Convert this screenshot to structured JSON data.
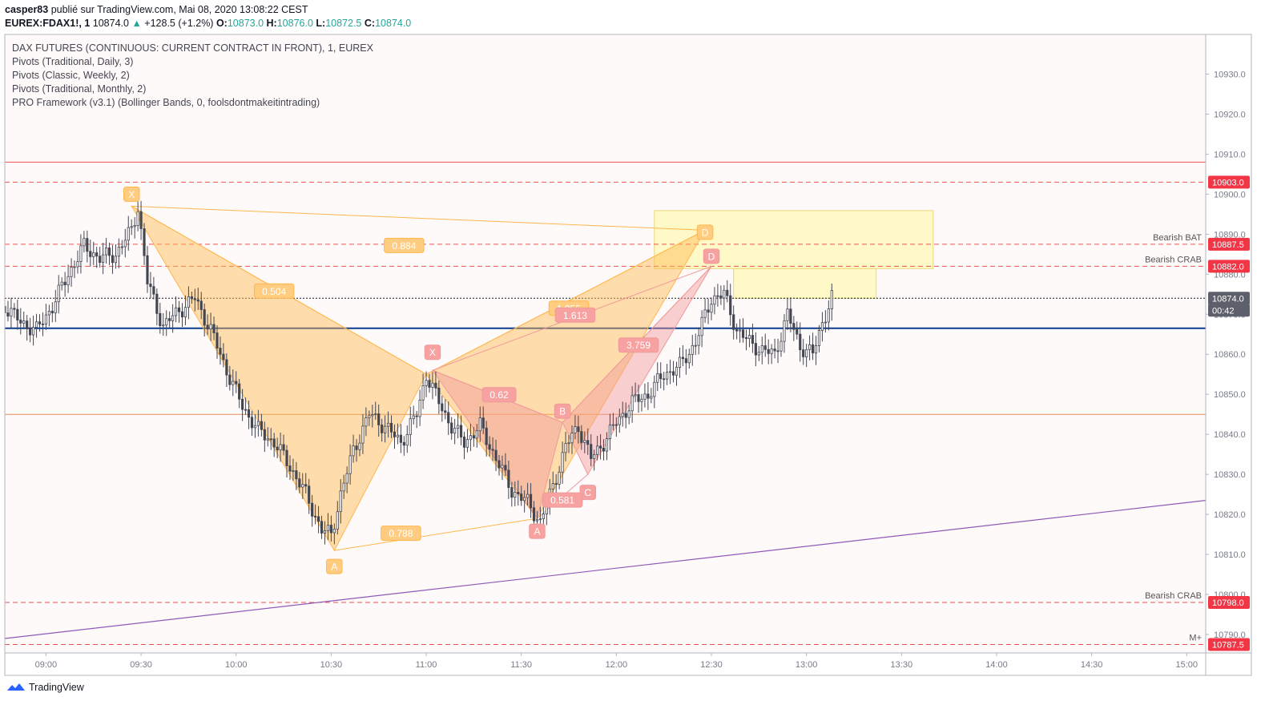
{
  "header": {
    "user": "casper83",
    "published_text": "publié sur TradingView.com, Mai 08, 2020 13:08:22 CEST",
    "symbol": "EUREX:FDAX1!, 1",
    "last": "10874.0",
    "change_arrow": "▲",
    "change": "+128.5 (+1.2%)",
    "o_label": "O:",
    "o": "10873.0",
    "h_label": "H:",
    "h": "10876.0",
    "l_label": "L:",
    "l": "10872.5",
    "c_label": "C:",
    "c": "10874.0"
  },
  "legend": [
    "DAX FUTURES (CONTINUOUS: CURRENT CONTRACT IN FRONT), 1, EUREX",
    "Pivots (Traditional, Daily, 3)",
    "Pivots (Classic, Weekly, 2)",
    "Pivots (Traditional, Monthly, 2)",
    "PRO Framework (v3.1) (Bollinger Bands, 0, foolsdontmakeitintrading)"
  ],
  "brand": "TradingView",
  "colors": {
    "up": "#26a69a",
    "text": "#131722",
    "axis": "#787b86",
    "price_label_red": "#f23645",
    "price_label_grey": "#5d606b",
    "pattern_orange": "#ffb74d",
    "pattern_pink": "#ef9a9a",
    "zone_yellow": "#fff59d",
    "pivot_blue": "#0d3b8c",
    "pivot_orange": "#e08b56",
    "trend_purple": "#8e59b8",
    "red_line": "#ef5350"
  },
  "chart_data": {
    "type": "candlestick",
    "x_tick_labels": [
      "09:00",
      "09:30",
      "10:00",
      "10:30",
      "11:00",
      "11:30",
      "12:00",
      "12:30",
      "13:00",
      "13:30",
      "14:00",
      "14:30",
      "15:00"
    ],
    "y_tick_labels": [
      "10930.0",
      "10920.0",
      "10910.0",
      "10900.0",
      "10890.0",
      "10880.0",
      "10870.0",
      "10860.0",
      "10850.0",
      "10840.0",
      "10830.0",
      "10820.0",
      "10810.0",
      "10800.0",
      "10790.0"
    ],
    "y_ticks": [
      10930,
      10920,
      10910,
      10900,
      10890,
      10880,
      10870,
      10860,
      10850,
      10840,
      10830,
      10820,
      10810,
      10800,
      10790
    ],
    "ylim": [
      10785.4,
      10939.9
    ],
    "x_range": [
      "08:47",
      "15:06"
    ],
    "price_labels": [
      {
        "value": 10903.0,
        "text": "10903.0",
        "style": "red"
      },
      {
        "value": 10887.5,
        "text": "10887.5",
        "style": "red"
      },
      {
        "value": 10882.0,
        "text": "10882.0",
        "style": "red"
      },
      {
        "value": 10874.0,
        "text": "10874.0",
        "style": "grey"
      },
      {
        "value": 10871.0,
        "text": "00:42",
        "style": "grey"
      },
      {
        "value": 10798.0,
        "text": "10798.0",
        "style": "red"
      },
      {
        "value": 10787.5,
        "text": "10787.5",
        "style": "red"
      }
    ],
    "level_lines": [
      {
        "value": 10908.0,
        "style": "solid",
        "color": "red_line"
      },
      {
        "value": 10903.0,
        "style": "dashed",
        "color": "red_line"
      },
      {
        "value": 10887.5,
        "style": "dashed",
        "color": "red_line",
        "text": "Bearish BAT"
      },
      {
        "value": 10882.0,
        "style": "dashed",
        "color": "red_line",
        "text": "Bearish CRAB"
      },
      {
        "value": 10874.0,
        "style": "dotted",
        "color": "text"
      },
      {
        "value": 10866.5,
        "style": "solid",
        "color": "pivot_blue"
      },
      {
        "value": 10845.0,
        "style": "solid",
        "color": "pivot_orange"
      },
      {
        "value": 10798.0,
        "style": "dashed",
        "color": "red_line",
        "text": "Bearish CRAB"
      },
      {
        "value": 10787.5,
        "style": "dashed",
        "color": "red_line",
        "text": "M+"
      }
    ],
    "trendline": {
      "from": [
        "08:47",
        10789.0
      ],
      "to": [
        "15:06",
        10823.5
      ]
    },
    "price_path": [
      [
        "08:47",
        10872
      ],
      [
        "08:52",
        10868
      ],
      [
        "08:57",
        10866
      ],
      [
        "09:02",
        10872
      ],
      [
        "09:07",
        10880
      ],
      [
        "09:12",
        10887
      ],
      [
        "09:17",
        10884
      ],
      [
        "09:22",
        10885
      ],
      [
        "09:27",
        10891
      ],
      [
        "09:29",
        10897
      ],
      [
        "09:32",
        10878
      ],
      [
        "09:37",
        10867
      ],
      [
        "09:42",
        10871
      ],
      [
        "09:47",
        10874
      ],
      [
        "09:52",
        10866
      ],
      [
        "09:57",
        10856
      ],
      [
        "10:02",
        10847
      ],
      [
        "10:07",
        10841
      ],
      [
        "10:12",
        10838
      ],
      [
        "10:17",
        10832
      ],
      [
        "10:22",
        10825
      ],
      [
        "10:27",
        10816
      ],
      [
        "10:30",
        10815
      ],
      [
        "10:33",
        10825
      ],
      [
        "10:37",
        10836
      ],
      [
        "10:42",
        10845
      ],
      [
        "10:47",
        10842
      ],
      [
        "10:52",
        10838
      ],
      [
        "10:57",
        10845
      ],
      [
        "11:00",
        10855
      ],
      [
        "11:04",
        10848
      ],
      [
        "11:08",
        10842
      ],
      [
        "11:12",
        10838
      ],
      [
        "11:17",
        10842
      ],
      [
        "11:22",
        10834
      ],
      [
        "11:27",
        10826
      ],
      [
        "11:32",
        10823
      ],
      [
        "11:36",
        10818
      ],
      [
        "11:40",
        10827
      ],
      [
        "11:44",
        10837
      ],
      [
        "11:48",
        10842
      ],
      [
        "11:52",
        10834
      ],
      [
        "11:56",
        10838
      ],
      [
        "12:00",
        10843
      ],
      [
        "12:05",
        10848
      ],
      [
        "12:10",
        10850
      ],
      [
        "12:15",
        10855
      ],
      [
        "12:20",
        10857
      ],
      [
        "12:25",
        10863
      ],
      [
        "12:30",
        10874
      ],
      [
        "12:34",
        10875
      ],
      [
        "12:38",
        10866
      ],
      [
        "12:42",
        10863
      ],
      [
        "12:46",
        10861
      ],
      [
        "12:50",
        10860
      ],
      [
        "12:54",
        10870
      ],
      [
        "12:58",
        10862
      ],
      [
        "13:02",
        10860
      ],
      [
        "13:05",
        10868
      ],
      [
        "13:08",
        10874
      ]
    ],
    "harmonic_patterns": [
      {
        "color": "orange",
        "points": {
          "X": [
            "09:27",
            10897
          ],
          "A": [
            "10:31",
            10811
          ],
          "B": [
            "11:00",
            10855
          ],
          "C": [
            "11:35",
            10819
          ],
          "D": [
            "12:28",
            10891
          ]
        },
        "labels": [
          {
            "text": "X",
            "at": [
              "09:27",
              10900
            ]
          },
          {
            "text": "A",
            "at": [
              "10:31",
              10807
            ]
          },
          {
            "text": "D",
            "at": [
              "12:28",
              10890.5
            ]
          },
          {
            "text": "0.504",
            "at": [
              "10:12",
              10875.8
            ]
          },
          {
            "text": "0.884",
            "at": [
              "10:53",
              10887.2
            ]
          },
          {
            "text": "0.788",
            "at": [
              "10:52",
              10815.3
            ]
          },
          {
            "text": "1.955",
            "at": [
              "11:45",
              10871.5
            ]
          }
        ]
      },
      {
        "color": "pink",
        "points": {
          "X": [
            "11:02",
            10856
          ],
          "A": [
            "11:35",
            10819
          ],
          "B": [
            "11:43",
            10843
          ],
          "C": [
            "11:51",
            10830
          ],
          "D": [
            "12:30",
            10882
          ]
        },
        "labels": [
          {
            "text": "X",
            "at": [
              "11:02",
              10860.5
            ]
          },
          {
            "text": "A",
            "at": [
              "11:35",
              10815.8
            ]
          },
          {
            "text": "B",
            "at": [
              "11:43",
              10845.8
            ]
          },
          {
            "text": "C",
            "at": [
              "11:51",
              10825.5
            ]
          },
          {
            "text": "D",
            "at": [
              "12:30",
              10884.5
            ]
          },
          {
            "text": "0.62",
            "at": [
              "11:23",
              10849.9
            ]
          },
          {
            "text": "1.613",
            "at": [
              "11:47",
              10869.8
            ]
          },
          {
            "text": "3.759",
            "at": [
              "12:07",
              10862.3
            ]
          },
          {
            "text": "0.581",
            "at": [
              "11:43",
              10823.6
            ]
          }
        ]
      }
    ],
    "zones": [
      {
        "from": "12:12",
        "to": "13:40",
        "low": 10881.4,
        "high": 10895.9,
        "color": "zone_yellow"
      },
      {
        "from": "12:37",
        "to": "13:22",
        "low": 10874.0,
        "high": 10881.4,
        "color": "zone_yellow"
      }
    ],
    "title": "",
    "xlabel": "",
    "ylabel": ""
  }
}
